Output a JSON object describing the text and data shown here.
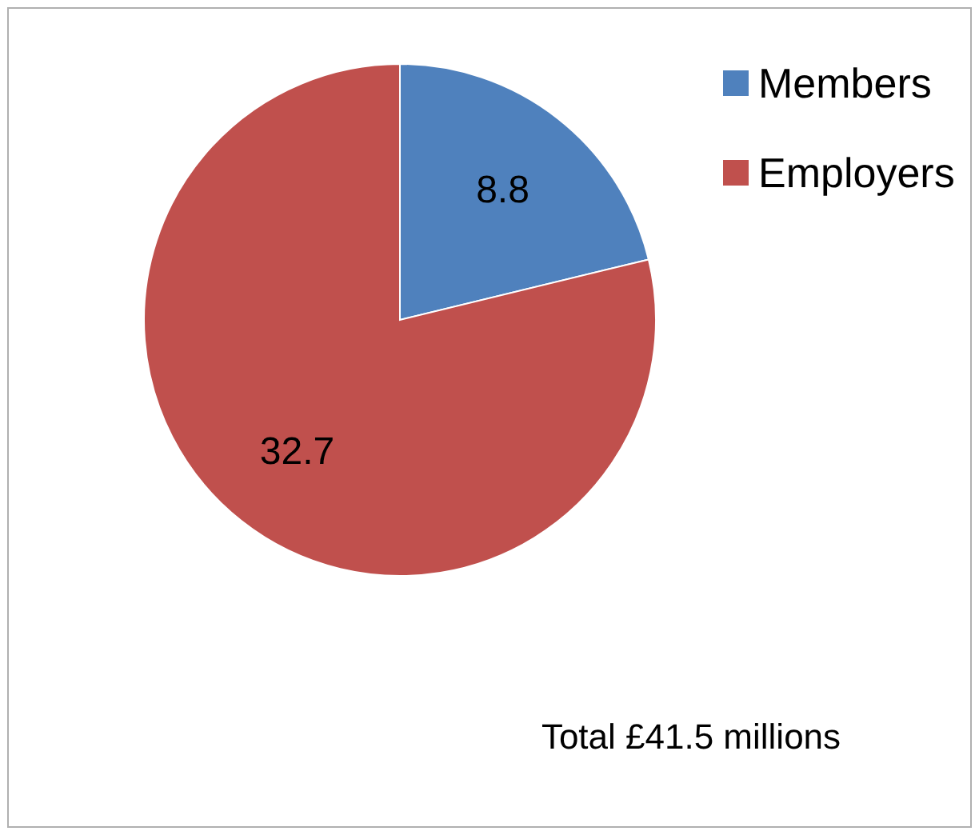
{
  "chart_data": {
    "type": "pie",
    "categories": [
      "Members",
      "Employers"
    ],
    "values": [
      8.8,
      32.7
    ],
    "colors": [
      "#4f81bd",
      "#c0504d"
    ],
    "data_labels": true,
    "legend": "top right",
    "annotations": [
      "Total £41.5 millions"
    ]
  }
}
